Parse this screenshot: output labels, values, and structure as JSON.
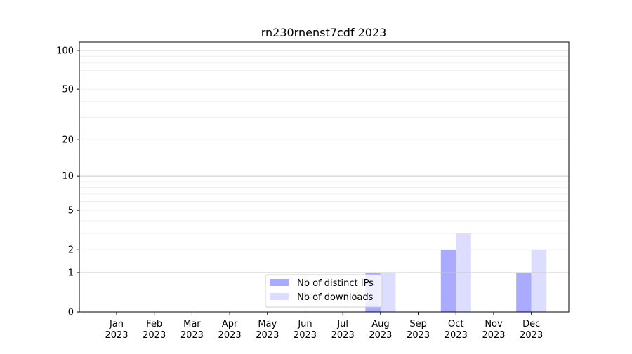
{
  "chart_data": {
    "type": "bar",
    "title": "rn230rnenst7cdf 2023",
    "xlabel": "",
    "ylabel": "",
    "yscale": "log(1+y)",
    "ylim": [
      0,
      116
    ],
    "yticks": [
      0,
      1,
      2,
      5,
      10,
      20,
      50,
      100
    ],
    "grid": true,
    "legend": "bottom-center",
    "categories": [
      "Jan\n2023",
      "Feb\n2023",
      "Mar\n2023",
      "Apr\n2023",
      "May\n2023",
      "Jun\n2023",
      "Jul\n2023",
      "Aug\n2023",
      "Sep\n2023",
      "Oct\n2023",
      "Nov\n2023",
      "Dec\n2023"
    ],
    "series": [
      {
        "name": "Nb of distinct IPs",
        "color": "#aaaaff",
        "values": [
          0,
          0,
          0,
          0,
          0,
          0,
          0,
          1,
          0,
          2,
          0,
          1
        ]
      },
      {
        "name": "Nb of downloads",
        "color": "#ddddff",
        "values": [
          0,
          0,
          0,
          0,
          0,
          0,
          0,
          1,
          0,
          3,
          0,
          2
        ]
      }
    ]
  }
}
